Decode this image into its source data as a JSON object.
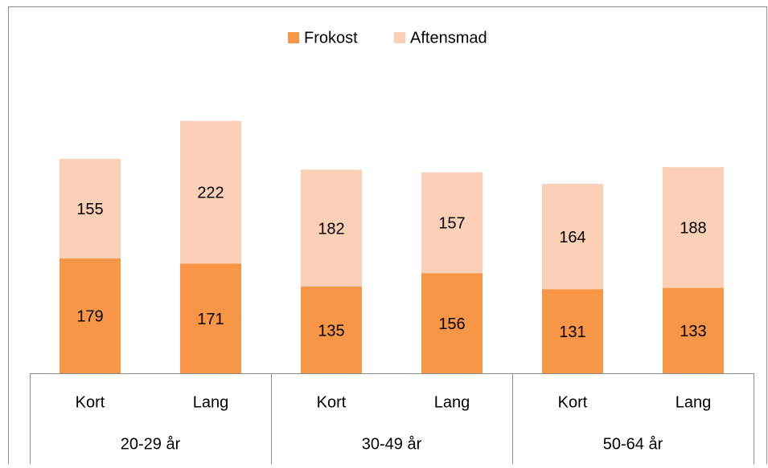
{
  "chart_data": {
    "type": "stacked_bar",
    "categories": [
      "Kort",
      "Lang",
      "Kort",
      "Lang",
      "Kort",
      "Lang"
    ],
    "groups": [
      "20-29 år",
      "30-49 år",
      "50-64 år"
    ],
    "series": [
      {
        "name": "Frokost",
        "color": "#f79646",
        "values": [
          179,
          171,
          135,
          156,
          131,
          133
        ]
      },
      {
        "name": "Aftensmad",
        "color": "#fcd0b6",
        "values": [
          155,
          222,
          182,
          157,
          164,
          188
        ]
      }
    ],
    "legend": "top"
  }
}
